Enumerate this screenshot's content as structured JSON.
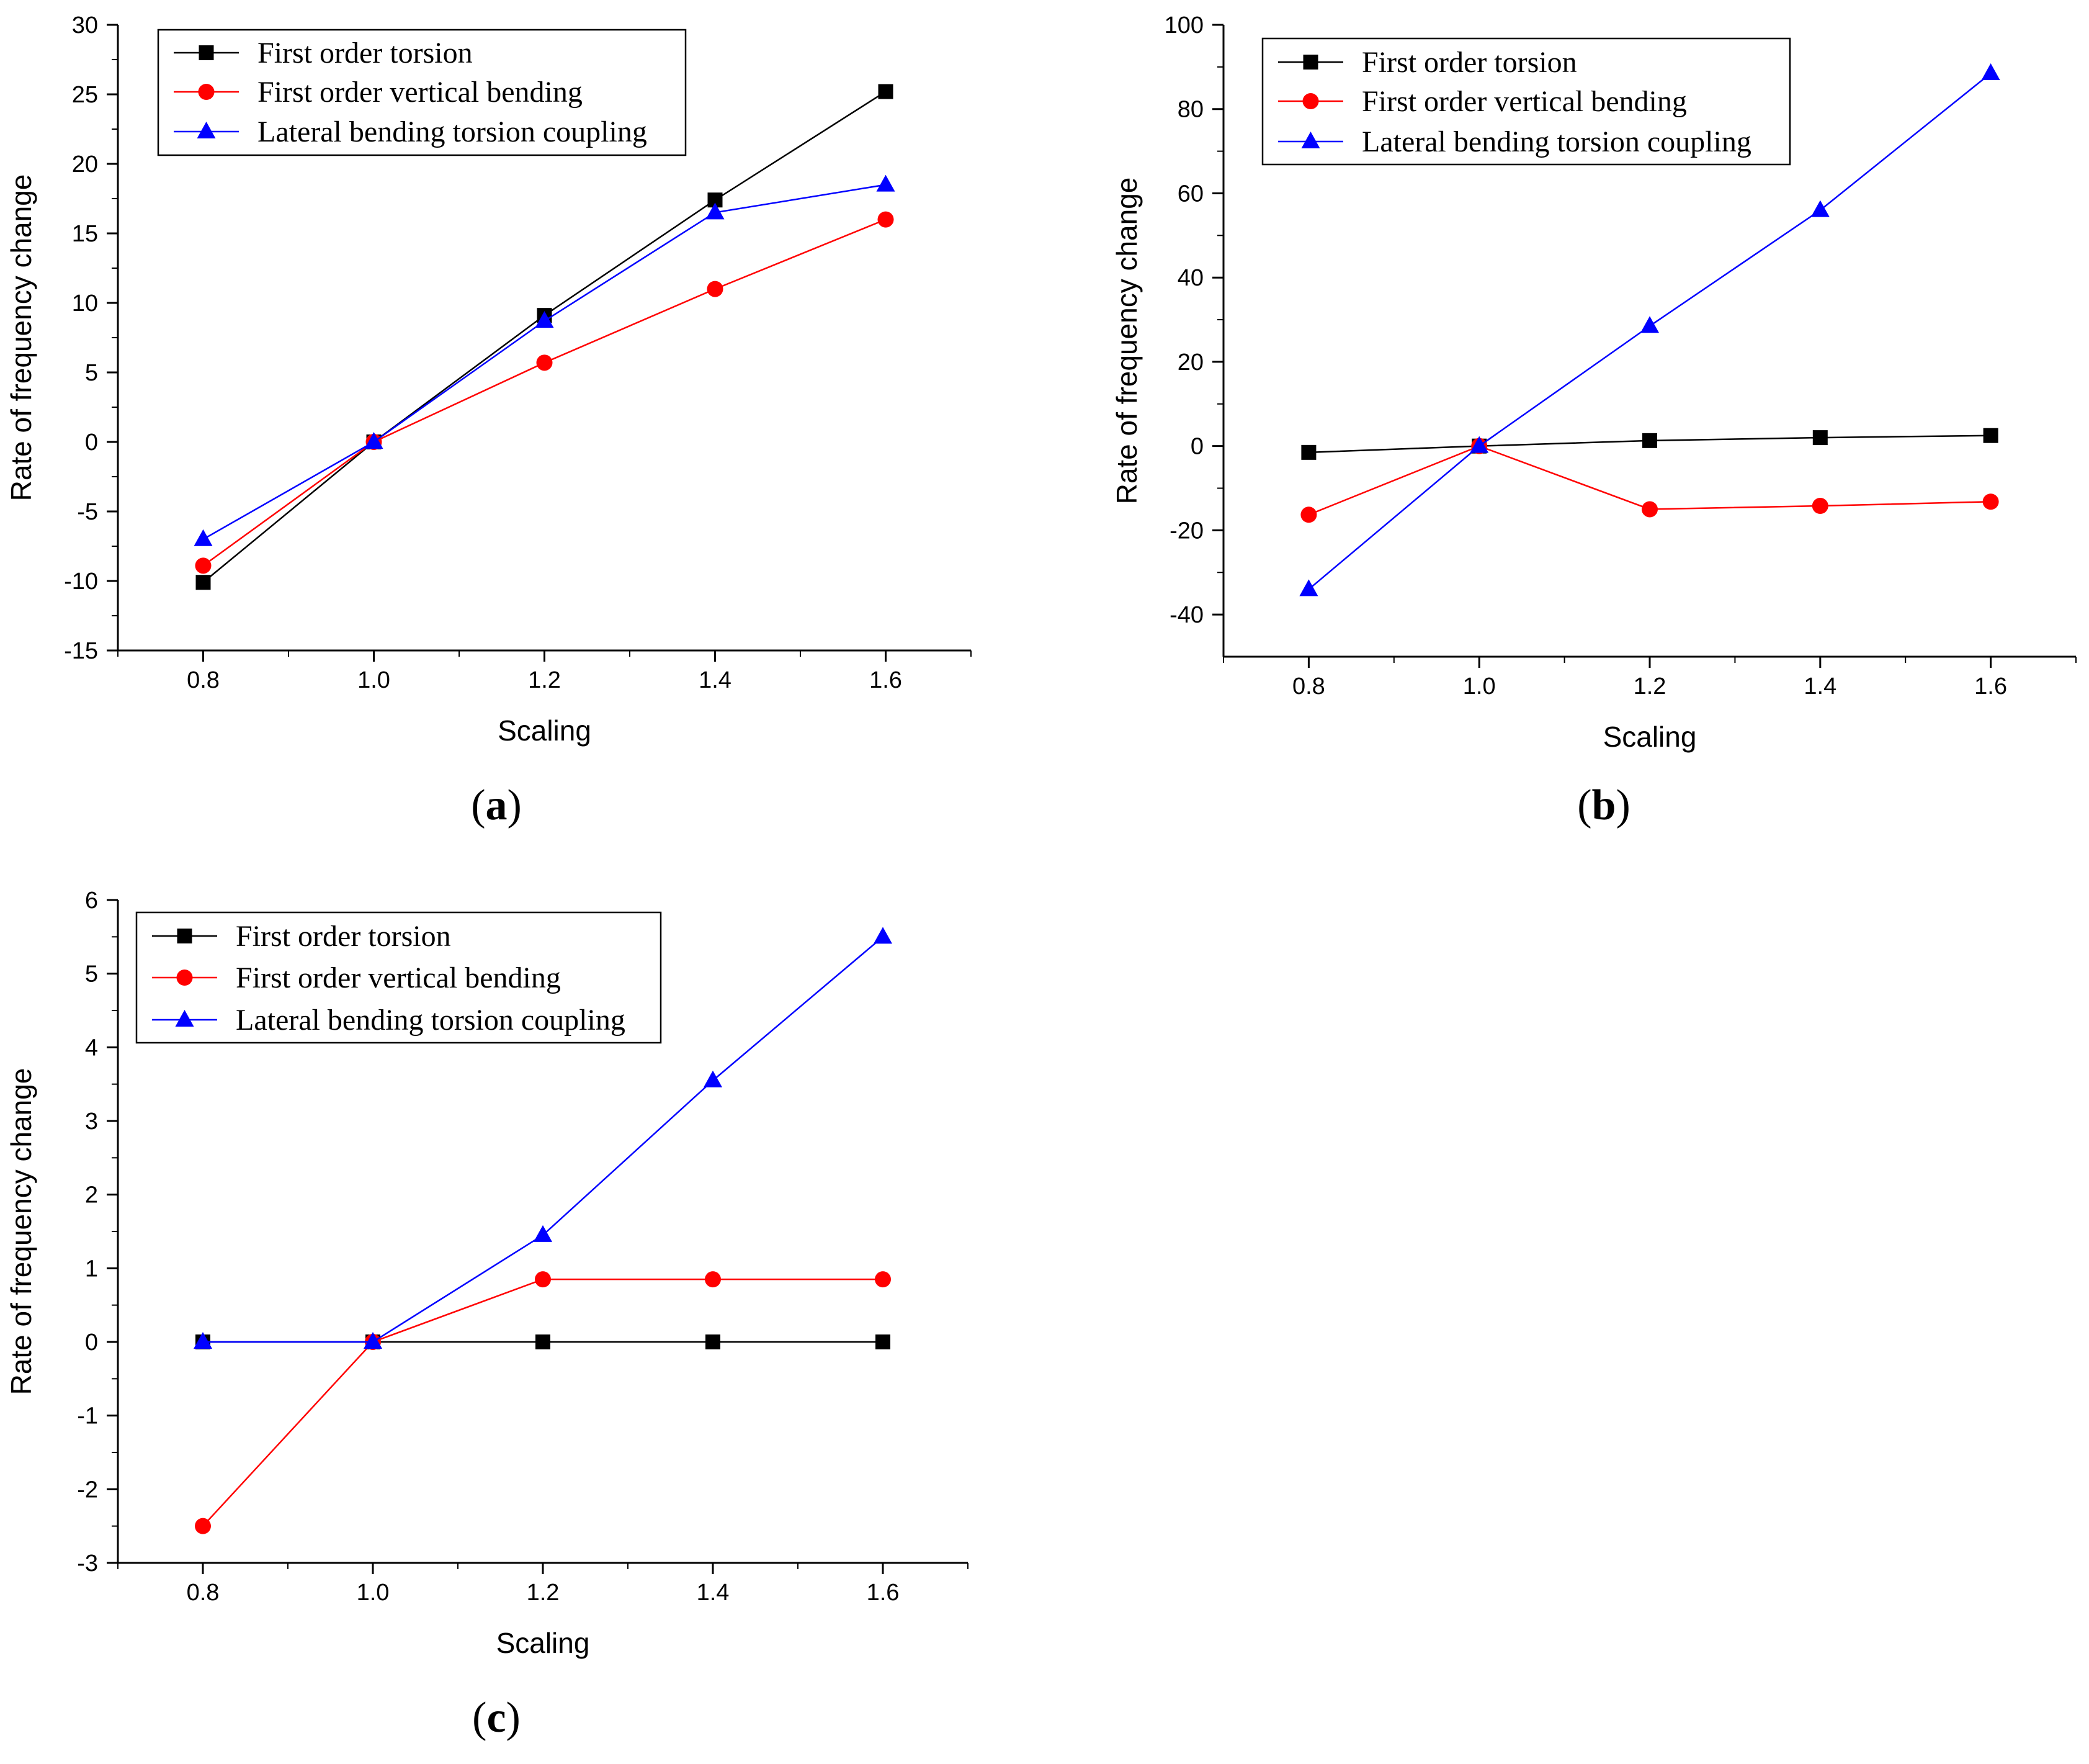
{
  "chart_data": [
    {
      "type": "line",
      "panel": "a",
      "caption_open": "(",
      "caption_letter": "a",
      "caption_close": ")",
      "title": "",
      "xlabel": "Scaling",
      "ylabel": "Rate of frequency change",
      "x": [
        0.8,
        1.0,
        1.2,
        1.4,
        1.6
      ],
      "xlim": [
        0.7,
        1.7
      ],
      "ylim": [
        -15,
        30
      ],
      "xticks": [
        0.8,
        1.0,
        1.2,
        1.4,
        1.6
      ],
      "xtick_labels": [
        "0.8",
        "1.0",
        "1.2",
        "1.4",
        "1.6"
      ],
      "yticks": [
        -15,
        -10,
        -5,
        0,
        5,
        10,
        15,
        20,
        25,
        30
      ],
      "ytick_labels": [
        "-15",
        "-10",
        "-5",
        "0",
        "5",
        "10",
        "15",
        "20",
        "25",
        "30"
      ],
      "grid": false,
      "legend_position": "top-left",
      "series": [
        {
          "name": "First order torsion",
          "color": "#000000",
          "marker": "square",
          "values": [
            -10.1,
            0,
            9.1,
            17.4,
            25.2
          ]
        },
        {
          "name": "First order vertical bending",
          "color": "#ff0000",
          "marker": "circle",
          "values": [
            -8.9,
            0,
            5.7,
            11.0,
            16.0
          ]
        },
        {
          "name": "Lateral bending torsion coupling",
          "color": "#0000ff",
          "marker": "triangle",
          "values": [
            -7.0,
            0,
            8.7,
            16.5,
            18.5
          ]
        }
      ]
    },
    {
      "type": "line",
      "panel": "b",
      "caption_open": "(",
      "caption_letter": "b",
      "caption_close": ")",
      "title": "",
      "xlabel": "Scaling",
      "ylabel": "Rate of frequency change",
      "x": [
        0.8,
        1.0,
        1.2,
        1.4,
        1.6
      ],
      "xlim": [
        0.7,
        1.7
      ],
      "ylim": [
        -50,
        100
      ],
      "xticks": [
        0.8,
        1.0,
        1.2,
        1.4,
        1.6
      ],
      "xtick_labels": [
        "0.8",
        "1.0",
        "1.2",
        "1.4",
        "1.6"
      ],
      "yticks": [
        -40,
        -20,
        0,
        20,
        40,
        60,
        80,
        100
      ],
      "ytick_labels": [
        "-40",
        "-20",
        "0",
        "20",
        "40",
        "60",
        "80",
        "100"
      ],
      "grid": false,
      "legend_position": "top-left",
      "series": [
        {
          "name": "First order torsion",
          "color": "#000000",
          "marker": "square",
          "values": [
            -1.5,
            0,
            1.3,
            2.0,
            2.5
          ]
        },
        {
          "name": "First order vertical bending",
          "color": "#ff0000",
          "marker": "circle",
          "values": [
            -16.3,
            0,
            -15.0,
            -14.2,
            -13.2
          ]
        },
        {
          "name": "Lateral bending torsion coupling",
          "color": "#0000ff",
          "marker": "triangle",
          "values": [
            -34.0,
            0,
            28.5,
            56.0,
            88.5
          ]
        }
      ]
    },
    {
      "type": "line",
      "panel": "c",
      "caption_open": "(",
      "caption_letter": "c",
      "caption_close": ")",
      "title": "",
      "xlabel": "Scaling",
      "ylabel": "Rate of frequency change",
      "x": [
        0.8,
        1.0,
        1.2,
        1.4,
        1.6
      ],
      "xlim": [
        0.7,
        1.7
      ],
      "ylim": [
        -3,
        6
      ],
      "xticks": [
        0.8,
        1.0,
        1.2,
        1.4,
        1.6
      ],
      "xtick_labels": [
        "0.8",
        "1.0",
        "1.2",
        "1.4",
        "1.6"
      ],
      "yticks": [
        -3,
        -2,
        -1,
        0,
        1,
        2,
        3,
        4,
        5,
        6
      ],
      "ytick_labels": [
        "-3",
        "-2",
        "-1",
        "0",
        "1",
        "2",
        "3",
        "4",
        "5",
        "6"
      ],
      "grid": false,
      "legend_position": "top-left",
      "series": [
        {
          "name": "First order torsion",
          "color": "#000000",
          "marker": "square",
          "values": [
            0,
            0,
            0,
            0,
            0
          ]
        },
        {
          "name": "First order vertical bending",
          "color": "#ff0000",
          "marker": "circle",
          "values": [
            -2.5,
            0,
            0.85,
            0.85,
            0.85
          ]
        },
        {
          "name": "Lateral bending torsion coupling",
          "color": "#0000ff",
          "marker": "triangle",
          "values": [
            0,
            0,
            1.45,
            3.55,
            5.5
          ]
        }
      ]
    }
  ]
}
